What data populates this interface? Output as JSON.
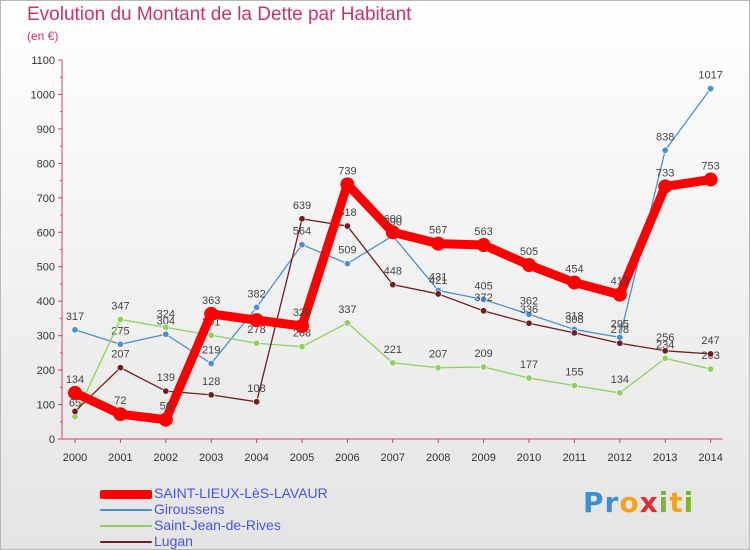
{
  "title": "Evolution du Montant de la Dette par Habitant",
  "unit_label": "(en €)",
  "brand": {
    "letters": [
      "P",
      "r",
      "o",
      "x",
      "i",
      "t",
      "i"
    ],
    "colors": [
      "#3b8fd4",
      "#3b8fd4",
      "#f6a21e",
      "#e0302c",
      "#7ab62f",
      "#f6a21e",
      "#7ab62f"
    ]
  },
  "chart_data": {
    "type": "line",
    "title": "Evolution du Montant de la Dette par Habitant",
    "ylabel": "(en €)",
    "xlabel": "",
    "ylim": [
      0,
      1100
    ],
    "yticks": [
      "0",
      "100",
      "200",
      "300",
      "400",
      "500",
      "600",
      "700",
      "800",
      "900",
      "1000",
      "1100"
    ],
    "categories": [
      "2000",
      "2001",
      "2002",
      "2003",
      "2004",
      "2005",
      "2006",
      "2007",
      "2008",
      "2009",
      "2010",
      "2011",
      "2012",
      "2013",
      "2014"
    ],
    "grid": false,
    "legend_position": "bottom-left",
    "series": [
      {
        "name": "SAINT-LIEUX-LèS-LAVAUR",
        "color": "#ff0000",
        "values": [
          134,
          72,
          56,
          363,
          345,
          328,
          739,
          600,
          567,
          563,
          505,
          454,
          419,
          733,
          753
        ],
        "labels": [
          "134",
          "72",
          "56",
          "363",
          "",
          "328",
          "739",
          "600",
          "567",
          "563",
          "505",
          "454",
          "419",
          "733",
          "753"
        ]
      },
      {
        "name": "Giroussens",
        "color": "#4a90d0",
        "values": [
          317,
          275,
          304,
          219,
          382,
          564,
          509,
          590,
          431,
          405,
          362,
          318,
          295,
          838,
          1017
        ],
        "labels": [
          "317",
          "275",
          "304",
          "219",
          "382",
          "564",
          "509",
          "590",
          "431",
          "405",
          "362",
          "318",
          "295",
          "838",
          "1017"
        ]
      },
      {
        "name": "Saint-Jean-de-Rives",
        "color": "#8fd060",
        "values": [
          65,
          347,
          324,
          301,
          278,
          268,
          337,
          221,
          207,
          209,
          177,
          155,
          134,
          234,
          203
        ],
        "labels": [
          "65",
          "347",
          "324",
          "301",
          "278",
          "268",
          "337",
          "221",
          "207",
          "209",
          "177",
          "155",
          "134",
          "234",
          "203"
        ]
      },
      {
        "name": "Lugan",
        "color": "#6e1e1e",
        "values": [
          80,
          207,
          139,
          128,
          108,
          639,
          618,
          448,
          421,
          372,
          336,
          308,
          278,
          256,
          247
        ],
        "labels": [
          "",
          "207",
          "139",
          "128",
          "108",
          "639",
          "618",
          "448",
          "421",
          "372",
          "336",
          "308",
          "278",
          "256",
          "247"
        ]
      }
    ]
  }
}
